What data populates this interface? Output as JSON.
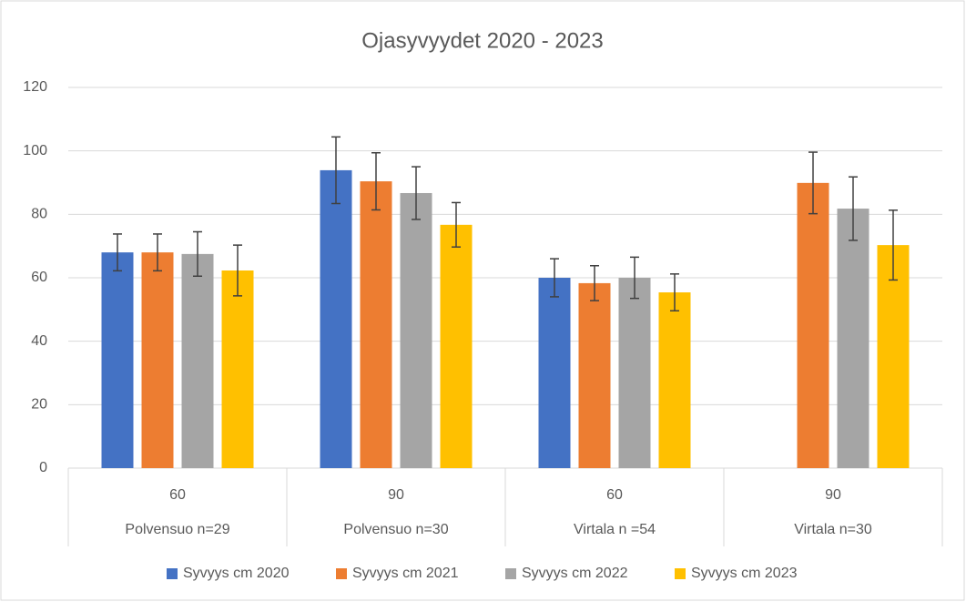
{
  "chart_data": {
    "type": "bar",
    "title": "Ojasyvyydet 2020 - 2023",
    "categories": [
      "60",
      "90",
      "60",
      "90"
    ],
    "groups": [
      "Polvensuo n=29",
      "Polvensuo n=30",
      "Virtala n =54",
      "Virtala n=30"
    ],
    "series": [
      {
        "name": "Syvyys cm 2020",
        "color": "#4472c4",
        "values": [
          68,
          93.9,
          60,
          null
        ],
        "errors": [
          5.8,
          10.5,
          6,
          null
        ]
      },
      {
        "name": "Syvyys cm 2021",
        "color": "#ed7d31",
        "values": [
          68,
          90.4,
          58.3,
          89.9
        ],
        "errors": [
          5.8,
          9,
          5.5,
          9.7
        ]
      },
      {
        "name": "Syvyys cm 2022",
        "color": "#a5a5a5",
        "values": [
          67.5,
          86.7,
          60,
          81.8
        ],
        "errors": [
          7,
          8.3,
          6.5,
          10
        ]
      },
      {
        "name": "Syvyys cm 2023",
        "color": "#ffc000",
        "values": [
          62.3,
          76.7,
          55.4,
          70.3
        ],
        "errors": [
          8,
          7,
          5.8,
          11
        ]
      }
    ],
    "ylim": [
      0,
      120
    ],
    "yticks": [
      0,
      20,
      40,
      60,
      80,
      100,
      120
    ],
    "grid": true,
    "legend": "bottom"
  }
}
